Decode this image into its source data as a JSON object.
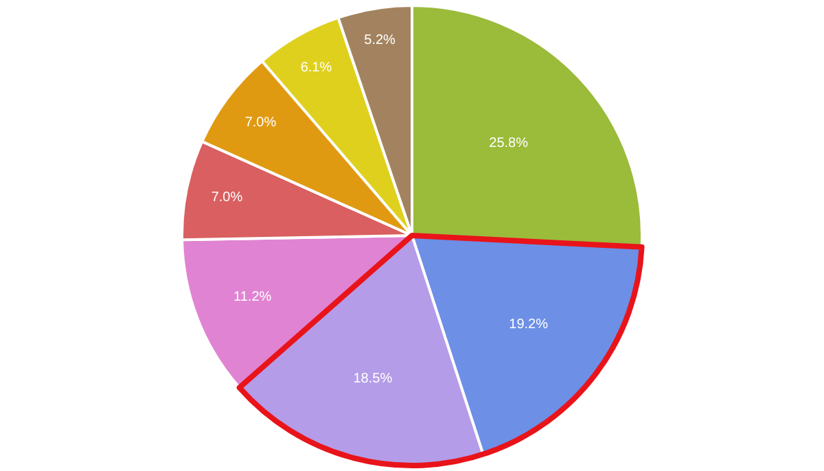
{
  "chart_data": {
    "type": "pie",
    "categories": [
      null,
      null,
      null,
      null,
      null,
      null,
      null,
      null
    ],
    "values": [
      25.8,
      19.2,
      18.5,
      11.2,
      7.0,
      7.0,
      6.1,
      5.2
    ],
    "value_labels": [
      "25.8%",
      "19.2%",
      "18.5%",
      "11.2%",
      "7.0%",
      "7.0%",
      "6.1%",
      "5.2%"
    ],
    "colors": [
      "#9bbb3b",
      "#6d8fe6",
      "#b49ce8",
      "#e083d2",
      "#d95f60",
      "#e09a12",
      "#dfd01e",
      "#a3835f"
    ],
    "legend": false
  }
}
